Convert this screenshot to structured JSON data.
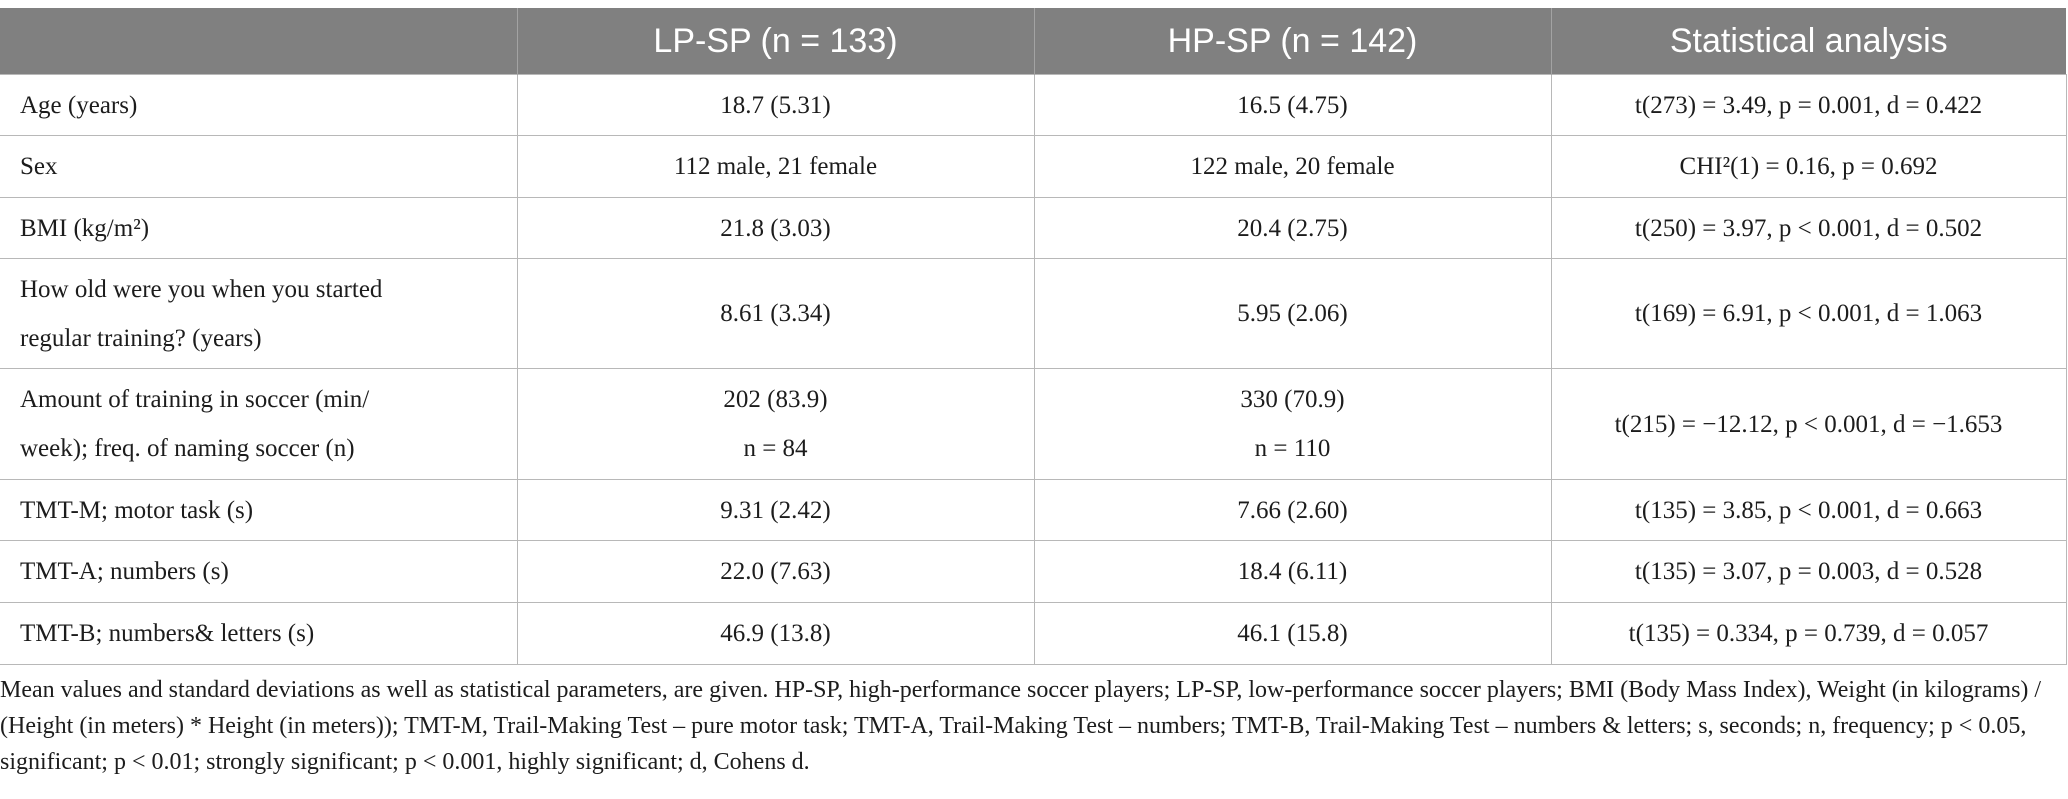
{
  "table": {
    "headers": [
      "",
      "LP-SP (n = 133)",
      "HP-SP (n = 142)",
      "Statistical analysis"
    ],
    "rows": [
      {
        "label": "Age (years)",
        "lp": "18.7 (5.31)",
        "hp": "16.5 (4.75)",
        "stat": "t(273) = 3.49, p = 0.001, d = 0.422"
      },
      {
        "label": "Sex",
        "lp": "112 male, 21 female",
        "hp": "122 male, 20 female",
        "stat": "CHI²(1) = 0.16, p = 0.692"
      },
      {
        "label": "BMI (kg/m²)",
        "lp": "21.8 (3.03)",
        "hp": "20.4 (2.75)",
        "stat": "t(250) = 3.97, p < 0.001, d = 0.502"
      },
      {
        "label_line1": "How old were you when you started",
        "label_line2": "regular training? (years)",
        "lp": "8.61 (3.34)",
        "hp": "5.95 (2.06)",
        "stat": "t(169) = 6.91, p < 0.001, d = 1.063"
      },
      {
        "label_line1": "Amount of training in soccer (min/",
        "label_line2": "week); freq. of naming soccer (n)",
        "lp": "202 (83.9)",
        "lp_n": "n = 84",
        "hp": "330 (70.9)",
        "hp_n": "n = 110",
        "stat": "t(215) = −12.12, p < 0.001, d = −1.653"
      },
      {
        "label": "TMT-M; motor task (s)",
        "lp": "9.31 (2.42)",
        "hp": "7.66 (2.60)",
        "stat": "t(135) = 3.85, p < 0.001, d = 0.663"
      },
      {
        "label": "TMT-A; numbers (s)",
        "lp": "22.0 (7.63)",
        "hp": "18.4 (6.11)",
        "stat": "t(135) = 3.07, p = 0.003, d = 0.528"
      },
      {
        "label": "TMT-B; numbers& letters (s)",
        "lp": "46.9 (13.8)",
        "hp": "46.1 (15.8)",
        "stat": "t(135) = 0.334, p = 0.739, d = 0.057"
      }
    ]
  },
  "footnote": "Mean values and standard deviations as well as statistical parameters, are given. HP-SP, high-performance soccer players; LP-SP, low-performance soccer players; BMI (Body Mass Index), Weight (in kilograms) / (Height (in meters) * Height (in meters)); TMT-M, Trail-Making Test – pure motor task; TMT-A, Trail-Making Test – numbers; TMT-B, Trail-Making Test – numbers & letters; s, seconds; n, frequency; p < 0.05, significant; p < 0.01; strongly significant; p < 0.001, highly significant; d, Cohens d."
}
